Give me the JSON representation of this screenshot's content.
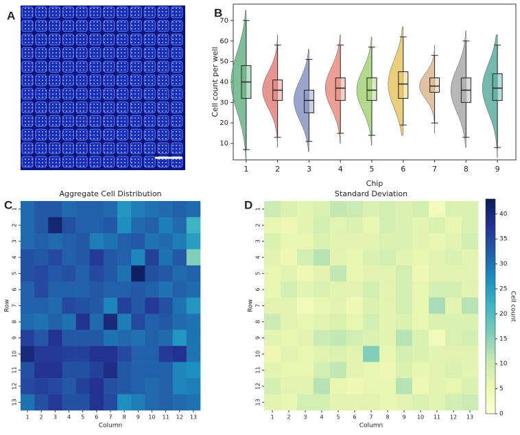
{
  "panel_labels": [
    "A",
    "B",
    "C",
    "D"
  ],
  "chart_data": [
    {
      "type": "raincloud",
      "ylabel": "Cell count per well",
      "xlabel": "Chip",
      "categories": [
        1,
        2,
        3,
        4,
        5,
        6,
        7,
        8,
        9
      ],
      "colors": [
        "#5fae7c",
        "#e07b74",
        "#7f8fbf",
        "#e8877c",
        "#9fcf6f",
        "#e6c25a",
        "#d9b48a",
        "#a5a5a5",
        "#52a89a"
      ],
      "whisker_low": [
        7,
        13,
        11,
        15,
        14,
        19,
        20,
        13,
        8
      ],
      "q1": [
        32,
        31,
        25,
        31,
        31,
        32,
        35,
        30,
        31
      ],
      "median": [
        40,
        36,
        31,
        37,
        36,
        39,
        38,
        36,
        37
      ],
      "q3": [
        48,
        41,
        36,
        42,
        42,
        45,
        42,
        42,
        44
      ],
      "whisker_high": [
        70,
        58,
        51,
        58,
        57,
        62,
        53,
        60,
        58
      ],
      "ylim": [
        2,
        78
      ],
      "yticks": [
        10,
        20,
        30,
        40,
        50,
        60,
        70
      ]
    },
    {
      "type": "heatmap",
      "title": "Aggregate Cell Distribution",
      "xlabel": "Column",
      "ylabel": "Row",
      "columns": [
        1,
        2,
        3,
        4,
        5,
        6,
        7,
        8,
        9,
        10,
        11,
        12,
        13
      ],
      "rows": [
        1,
        2,
        3,
        4,
        5,
        6,
        7,
        8,
        9,
        10,
        11,
        12,
        13
      ],
      "values": [
        [
          31,
          33,
          33,
          31,
          32,
          32,
          31,
          26,
          29,
          30,
          31,
          32,
          31
        ],
        [
          31,
          33,
          41,
          34,
          32,
          32,
          33,
          27,
          31,
          32,
          29,
          31,
          22
        ],
        [
          31,
          32,
          31,
          32,
          33,
          29,
          30,
          32,
          33,
          30,
          31,
          29,
          25
        ],
        [
          34,
          33,
          35,
          32,
          33,
          37,
          33,
          32,
          28,
          36,
          30,
          33,
          16
        ],
        [
          34,
          35,
          33,
          34,
          32,
          35,
          33,
          30,
          42,
          34,
          33,
          31,
          32
        ],
        [
          32,
          35,
          32,
          32,
          32,
          33,
          32,
          32,
          33,
          32,
          30,
          32,
          31
        ],
        [
          32,
          32,
          31,
          35,
          34,
          33,
          28,
          36,
          33,
          37,
          34,
          30,
          26
        ],
        [
          31,
          30,
          32,
          30,
          38,
          31,
          40,
          29,
          35,
          32,
          33,
          31,
          30
        ],
        [
          36,
          33,
          38,
          33,
          33,
          33,
          30,
          31,
          30,
          32,
          31,
          26,
          30
        ],
        [
          40,
          37,
          37,
          36,
          36,
          38,
          38,
          35,
          32,
          32,
          37,
          38,
          30
        ],
        [
          34,
          38,
          38,
          34,
          34,
          36,
          39,
          33,
          32,
          32,
          32,
          28,
          27
        ],
        [
          35,
          36,
          35,
          33,
          36,
          38,
          34,
          33,
          32,
          31,
          32,
          28,
          29
        ],
        [
          30,
          34,
          37,
          34,
          34,
          38,
          35,
          27,
          29,
          31,
          32,
          31,
          30
        ]
      ]
    },
    {
      "type": "heatmap",
      "title": "Standard Deviation",
      "xlabel": "Column",
      "ylabel": "Row",
      "columns": [
        1,
        2,
        3,
        4,
        5,
        6,
        7,
        8,
        9,
        10,
        11,
        12,
        13
      ],
      "rows": [
        1,
        2,
        3,
        4,
        5,
        6,
        7,
        8,
        9,
        10,
        11,
        12,
        13
      ],
      "values": [
        [
          10,
          8,
          7,
          8,
          11,
          10,
          8,
          9,
          8,
          9,
          4,
          8,
          8
        ],
        [
          6,
          5,
          7,
          9,
          7,
          8,
          6,
          9,
          8,
          7,
          8,
          6,
          8
        ],
        [
          8,
          6,
          6,
          8,
          7,
          7,
          7,
          8,
          8,
          7,
          6,
          7,
          9
        ],
        [
          7,
          5,
          9,
          12,
          7,
          6,
          8,
          9,
          7,
          6,
          7,
          8,
          7
        ],
        [
          6,
          7,
          5,
          7,
          11,
          6,
          7,
          7,
          9,
          5,
          7,
          7,
          7
        ],
        [
          6,
          9,
          7,
          8,
          7,
          7,
          9,
          7,
          9,
          6,
          9,
          9,
          7
        ],
        [
          7,
          7,
          4,
          6,
          7,
          5,
          8,
          7,
          9,
          6,
          13,
          7,
          12
        ],
        [
          10,
          7,
          6,
          7,
          8,
          6,
          9,
          7,
          8,
          6,
          8,
          8,
          8
        ],
        [
          7,
          6,
          7,
          10,
          11,
          9,
          8,
          7,
          12,
          8,
          4,
          8,
          9
        ],
        [
          5,
          7,
          6,
          7,
          8,
          7,
          16,
          6,
          9,
          8,
          7,
          7,
          7
        ],
        [
          7,
          6,
          6,
          9,
          11,
          7,
          6,
          5,
          8,
          6,
          7,
          8,
          7
        ],
        [
          9,
          7,
          7,
          12,
          6,
          5,
          6,
          6,
          12,
          5,
          7,
          6,
          8
        ],
        [
          7,
          6,
          9,
          9,
          7,
          7,
          7,
          6,
          7,
          8,
          7,
          9,
          10
        ]
      ]
    }
  ],
  "colorbar": {
    "label": "Cell count",
    "zlim": [
      0,
      43
    ],
    "ticks": [
      0,
      5,
      10,
      15,
      20,
      25,
      30,
      35,
      40
    ],
    "colorscale": [
      "#ffffd9",
      "#edf8b1",
      "#c7e9b4",
      "#7fcdbb",
      "#41b6c4",
      "#1d91c0",
      "#225ea8",
      "#253494",
      "#081d58"
    ]
  }
}
